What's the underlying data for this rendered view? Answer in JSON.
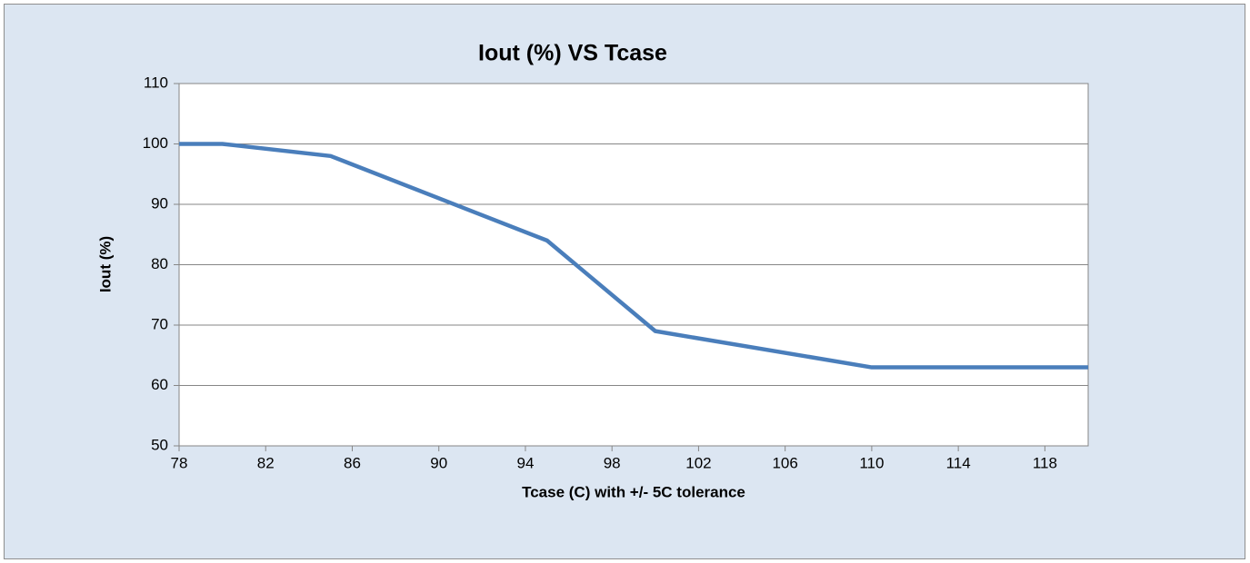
{
  "chart_data": {
    "type": "line",
    "title": "Iout (%) VS Tcase",
    "xlabel": "Tcase (C) with +/- 5C tolerance",
    "ylabel": "Iout (%)",
    "x": [
      78,
      80,
      85,
      95,
      100,
      110,
      120
    ],
    "values": [
      100,
      100,
      98,
      84,
      69,
      63,
      63
    ],
    "color": "#4a7ebb",
    "xlim": [
      78,
      120
    ],
    "xticks": [
      78,
      82,
      86,
      90,
      94,
      98,
      102,
      106,
      110,
      114,
      118
    ],
    "ylim": [
      50,
      110
    ],
    "yticks": [
      50,
      60,
      70,
      80,
      90,
      100,
      110
    ],
    "grid": true
  }
}
